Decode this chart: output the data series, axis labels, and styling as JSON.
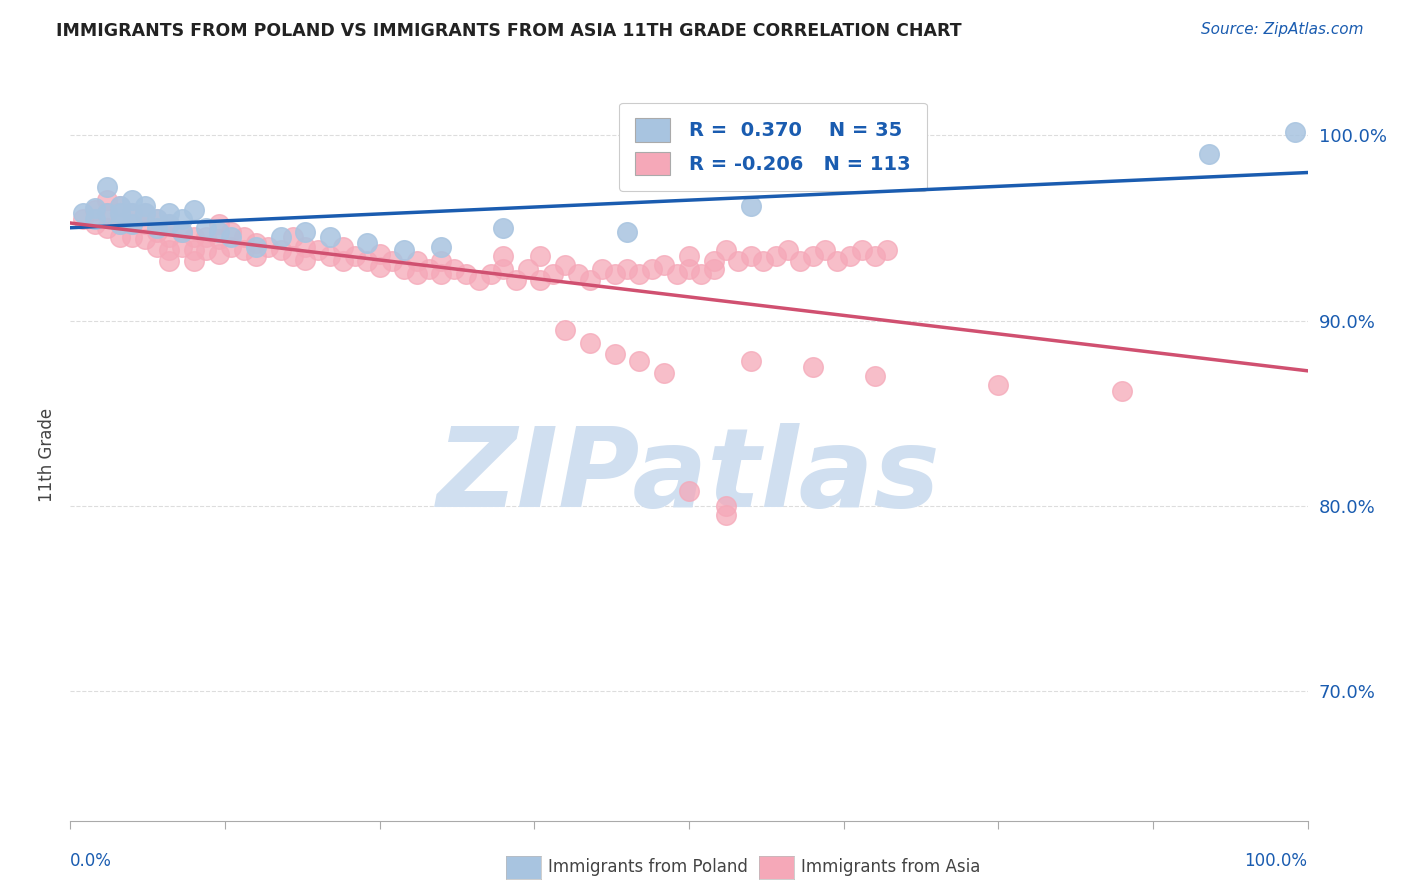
{
  "title": "IMMIGRANTS FROM POLAND VS IMMIGRANTS FROM ASIA 11TH GRADE CORRELATION CHART",
  "source": "Source: ZipAtlas.com",
  "ylabel": "11th Grade",
  "xlim": [
    0.0,
    1.0
  ],
  "ylim": [
    0.63,
    1.025
  ],
  "yticks": [
    0.7,
    0.8,
    0.9,
    1.0
  ],
  "ytick_labels": [
    "70.0%",
    "80.0%",
    "90.0%",
    "100.0%"
  ],
  "r_poland": 0.37,
  "n_poland": 35,
  "r_asia": -0.206,
  "n_asia": 113,
  "poland_color": "#a8c4e0",
  "poland_line_color": "#1a5cb0",
  "asia_color": "#f5a8b8",
  "asia_line_color": "#d05070",
  "watermark": "ZIPatlas",
  "watermark_color": "#d0dff0",
  "poland_scatter_x": [
    0.01,
    0.02,
    0.02,
    0.03,
    0.03,
    0.04,
    0.04,
    0.04,
    0.05,
    0.05,
    0.05,
    0.06,
    0.06,
    0.07,
    0.07,
    0.08,
    0.08,
    0.09,
    0.09,
    0.1,
    0.11,
    0.12,
    0.13,
    0.15,
    0.17,
    0.19,
    0.21,
    0.24,
    0.27,
    0.3,
    0.35,
    0.45,
    0.55,
    0.92,
    0.99
  ],
  "poland_scatter_y": [
    0.958,
    0.961,
    0.955,
    0.972,
    0.958,
    0.962,
    0.958,
    0.952,
    0.965,
    0.958,
    0.952,
    0.962,
    0.958,
    0.955,
    0.95,
    0.958,
    0.952,
    0.955,
    0.948,
    0.96,
    0.95,
    0.948,
    0.945,
    0.94,
    0.945,
    0.948,
    0.945,
    0.942,
    0.938,
    0.94,
    0.95,
    0.948,
    0.962,
    0.99,
    1.002
  ],
  "asia_scatter_x": [
    0.01,
    0.02,
    0.02,
    0.03,
    0.03,
    0.03,
    0.04,
    0.04,
    0.04,
    0.04,
    0.05,
    0.05,
    0.05,
    0.06,
    0.06,
    0.06,
    0.07,
    0.07,
    0.07,
    0.08,
    0.08,
    0.08,
    0.08,
    0.09,
    0.09,
    0.1,
    0.1,
    0.1,
    0.11,
    0.11,
    0.12,
    0.12,
    0.12,
    0.13,
    0.13,
    0.14,
    0.14,
    0.15,
    0.15,
    0.16,
    0.17,
    0.18,
    0.18,
    0.19,
    0.19,
    0.2,
    0.21,
    0.22,
    0.22,
    0.23,
    0.24,
    0.25,
    0.25,
    0.26,
    0.27,
    0.28,
    0.28,
    0.29,
    0.3,
    0.3,
    0.31,
    0.32,
    0.33,
    0.34,
    0.35,
    0.35,
    0.36,
    0.37,
    0.38,
    0.39,
    0.4,
    0.41,
    0.42,
    0.43,
    0.44,
    0.45,
    0.46,
    0.47,
    0.48,
    0.49,
    0.5,
    0.51,
    0.52,
    0.53,
    0.54,
    0.55,
    0.56,
    0.57,
    0.58,
    0.59,
    0.6,
    0.61,
    0.62,
    0.63,
    0.64,
    0.65,
    0.66,
    0.5,
    0.52,
    0.38,
    0.4,
    0.42,
    0.44,
    0.46,
    0.48,
    0.55,
    0.6,
    0.65,
    0.75,
    0.85,
    0.5,
    0.53,
    0.53
  ],
  "asia_scatter_y": [
    0.955,
    0.96,
    0.952,
    0.965,
    0.958,
    0.95,
    0.962,
    0.958,
    0.952,
    0.945,
    0.958,
    0.952,
    0.945,
    0.958,
    0.952,
    0.944,
    0.955,
    0.948,
    0.94,
    0.952,
    0.945,
    0.938,
    0.932,
    0.948,
    0.94,
    0.945,
    0.938,
    0.932,
    0.945,
    0.938,
    0.952,
    0.944,
    0.936,
    0.948,
    0.94,
    0.945,
    0.938,
    0.942,
    0.935,
    0.94,
    0.938,
    0.935,
    0.945,
    0.94,
    0.933,
    0.938,
    0.935,
    0.94,
    0.932,
    0.935,
    0.932,
    0.936,
    0.929,
    0.932,
    0.928,
    0.932,
    0.925,
    0.928,
    0.932,
    0.925,
    0.928,
    0.925,
    0.922,
    0.925,
    0.935,
    0.928,
    0.922,
    0.928,
    0.922,
    0.925,
    0.93,
    0.925,
    0.922,
    0.928,
    0.925,
    0.928,
    0.925,
    0.928,
    0.93,
    0.925,
    0.928,
    0.925,
    0.928,
    0.938,
    0.932,
    0.935,
    0.932,
    0.935,
    0.938,
    0.932,
    0.935,
    0.938,
    0.932,
    0.935,
    0.938,
    0.935,
    0.938,
    0.935,
    0.932,
    0.935,
    0.895,
    0.888,
    0.882,
    0.878,
    0.872,
    0.878,
    0.875,
    0.87,
    0.865,
    0.862,
    0.808,
    0.8,
    0.795
  ]
}
